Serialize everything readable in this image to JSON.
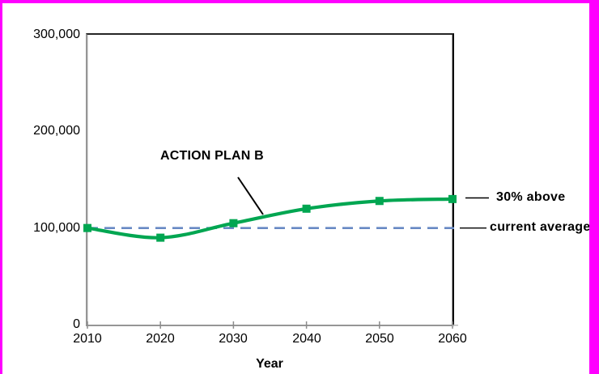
{
  "frame": {
    "border_color": "#FF00FF",
    "background": "#FFFFFF"
  },
  "chart_data": {
    "type": "line",
    "title": "",
    "xlabel": "Year",
    "ylabel": "",
    "x": [
      2010,
      2020,
      2030,
      2040,
      2050,
      2060
    ],
    "series": [
      {
        "name": "ACTION PLAN B",
        "values": [
          100000,
          90000,
          105000,
          120000,
          128000,
          130000
        ],
        "color": "#00A651",
        "marker": "square",
        "smooth": true
      }
    ],
    "baseline": {
      "value": 100000,
      "label": "current average",
      "color": "#6889C4",
      "style": "dashed"
    },
    "xlim": [
      2010,
      2060
    ],
    "ylim": [
      0,
      300000
    ],
    "grid": false,
    "y_tick_values": [
      300000,
      200000,
      100000,
      0
    ],
    "x_tick_values": [
      2010,
      2020,
      2030,
      2040,
      2050,
      2060
    ],
    "axis_color": "#8C8C8C"
  },
  "axes": {
    "y_tick_labels": [
      "300,000",
      "200,000",
      "100,000",
      "0"
    ],
    "x_tick_labels": [
      "2010",
      "2020",
      "2030",
      "2040",
      "2050",
      "2060"
    ]
  },
  "labels": {
    "series_annotation": "ACTION PLAN B",
    "end_annotation": "30% above",
    "baseline_annotation": "current average",
    "xlabel": "Year"
  }
}
